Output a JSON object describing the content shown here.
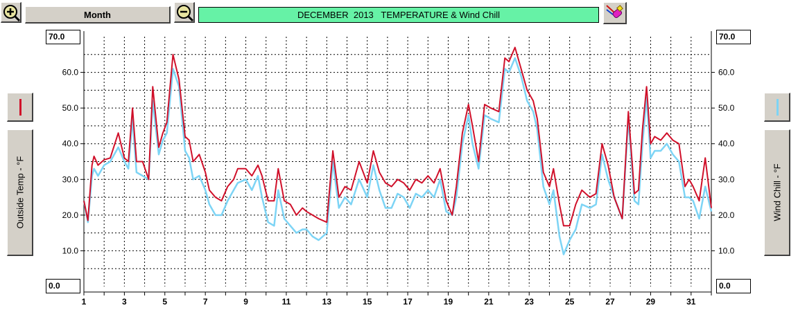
{
  "toolbar": {
    "zoom_in_icon": "zoom-in-magnifier",
    "zoom_out_icon": "zoom-out-magnifier",
    "period_button_label": "Month",
    "title": "DECEMBER  2013   TEMPERATURE & Wind Chill",
    "pen_icon": "pen-color-icon"
  },
  "left_axis": {
    "label": "Outside Temp - °F",
    "max_box": "70.0",
    "min_box": "0.0",
    "series_color": "#d0102a"
  },
  "right_axis": {
    "label": "Wind Chill - °F",
    "max_box": "70.0",
    "min_box": "0.0",
    "series_color": "#7dd4f5"
  },
  "chart_data": {
    "type": "line",
    "title": "DECEMBER  2013   TEMPERATURE & Wind Chill",
    "xlabel": "",
    "ylabel_left": "Outside Temp - °F",
    "ylabel_right": "Wind Chill - °F",
    "xlim": [
      1,
      32
    ],
    "ylim": [
      0,
      70
    ],
    "grid": true,
    "x_ticks": [
      1,
      3,
      5,
      7,
      9,
      11,
      13,
      15,
      17,
      19,
      21,
      23,
      25,
      27,
      29,
      31
    ],
    "y_ticks": [
      "10.0",
      "20.0",
      "30.0",
      "40.0",
      "50.0",
      "60.0"
    ],
    "series": [
      {
        "name": "Outside Temp",
        "color": "#d0102a",
        "x": [
          1,
          1.2,
          1.4,
          1.5,
          1.7,
          2,
          2.3,
          2.7,
          3,
          3.2,
          3.4,
          3.6,
          3.9,
          4.2,
          4.4,
          4.7,
          4.9,
          5.1,
          5.4,
          5.7,
          6,
          6.2,
          6.4,
          6.7,
          7,
          7.2,
          7.5,
          7.8,
          8.1,
          8.4,
          8.6,
          9,
          9.3,
          9.6,
          9.8,
          10.1,
          10.4,
          10.6,
          10.9,
          11.2,
          11.5,
          11.8,
          12,
          12.3,
          12.6,
          13,
          13.3,
          13.6,
          13.9,
          14.2,
          14.6,
          15,
          15.3,
          15.6,
          15.9,
          16.2,
          16.5,
          16.8,
          17.1,
          17.4,
          17.7,
          18,
          18.3,
          18.6,
          18.9,
          19.2,
          19.4,
          19.7,
          20,
          20.2,
          20.5,
          20.8,
          21.1,
          21.5,
          21.8,
          22,
          22.3,
          22.6,
          22.9,
          23.2,
          23.4,
          23.7,
          24,
          24.2,
          24.5,
          24.7,
          25,
          25.3,
          25.6,
          26,
          26.3,
          26.6,
          26.9,
          27.2,
          27.6,
          27.9,
          28.2,
          28.4,
          28.6,
          28.8,
          29,
          29.2,
          29.5,
          29.8,
          30.1,
          30.4,
          30.7,
          30.9,
          31.1,
          31.4,
          31.7,
          32
        ],
        "values": [
          24,
          18.5,
          34,
          36.5,
          34,
          35.5,
          36,
          43,
          36,
          35,
          50,
          35,
          35,
          30,
          56,
          39,
          43,
          46,
          65,
          58,
          42,
          41,
          35,
          37,
          32,
          27,
          25,
          24,
          28,
          30,
          33,
          33,
          31,
          34,
          31,
          24,
          24,
          33,
          24,
          23,
          20,
          22,
          21,
          20,
          19,
          18,
          38,
          25,
          28,
          27,
          35,
          29,
          38,
          32,
          29,
          28,
          30,
          29,
          27,
          30,
          29,
          31,
          29,
          33,
          24,
          20,
          28,
          43,
          51,
          45,
          35,
          51,
          50,
          49,
          64,
          63,
          67,
          61,
          55,
          52,
          47,
          32,
          28,
          33,
          23,
          17,
          17,
          23,
          27,
          25,
          26,
          40,
          34,
          25,
          19,
          49,
          26,
          27,
          44,
          56,
          40,
          42,
          41,
          43,
          41,
          40,
          28,
          30,
          28,
          24,
          36,
          22
        ]
      },
      {
        "name": "Wind Chill",
        "color": "#7dd4f5",
        "x": [
          1,
          1.2,
          1.4,
          1.5,
          1.7,
          2,
          2.3,
          2.7,
          3,
          3.2,
          3.4,
          3.6,
          3.9,
          4.2,
          4.4,
          4.7,
          4.9,
          5.1,
          5.4,
          5.7,
          6,
          6.2,
          6.4,
          6.7,
          7,
          7.2,
          7.5,
          7.8,
          8.1,
          8.4,
          8.6,
          9,
          9.3,
          9.6,
          9.8,
          10.1,
          10.4,
          10.6,
          10.9,
          11.2,
          11.5,
          11.8,
          12,
          12.3,
          12.6,
          13,
          13.3,
          13.6,
          13.9,
          14.2,
          14.6,
          15,
          15.3,
          15.6,
          15.9,
          16.2,
          16.5,
          16.8,
          17.1,
          17.4,
          17.7,
          18,
          18.3,
          18.6,
          18.9,
          19.2,
          19.4,
          19.7,
          20,
          20.2,
          20.5,
          20.8,
          21.1,
          21.5,
          21.8,
          22,
          22.3,
          22.6,
          22.9,
          23.2,
          23.4,
          23.7,
          24,
          24.2,
          24.5,
          24.7,
          25,
          25.3,
          25.6,
          26,
          26.3,
          26.6,
          26.9,
          27.2,
          27.6,
          27.9,
          28.2,
          28.4,
          28.6,
          28.8,
          29,
          29.2,
          29.5,
          29.8,
          30.1,
          30.4,
          30.7,
          30.9,
          31.1,
          31.4,
          31.7,
          32
        ],
        "values": [
          24,
          18,
          31,
          33,
          31,
          34,
          35,
          39,
          35,
          33,
          47,
          32,
          31,
          30,
          52,
          37,
          41,
          43,
          61,
          56,
          38,
          36,
          30,
          31,
          27,
          23,
          20,
          20,
          24,
          27,
          29,
          30,
          27,
          31,
          25,
          18,
          17,
          27,
          19,
          17,
          15,
          16,
          16,
          14,
          13,
          15,
          35,
          22,
          25,
          23,
          30,
          25,
          34,
          27,
          22,
          22,
          26,
          25,
          22,
          26,
          25,
          27,
          25,
          30,
          21,
          20,
          25,
          40,
          48,
          40,
          33,
          48,
          47,
          46,
          61,
          60,
          64,
          59,
          52,
          49,
          44,
          28,
          23,
          27,
          14,
          9,
          13,
          16,
          23,
          22,
          23,
          37,
          30,
          25,
          19,
          47,
          24,
          23,
          40,
          53,
          36,
          38,
          38,
          40,
          37,
          35,
          25,
          25,
          24,
          19,
          28,
          21
        ]
      }
    ]
  }
}
